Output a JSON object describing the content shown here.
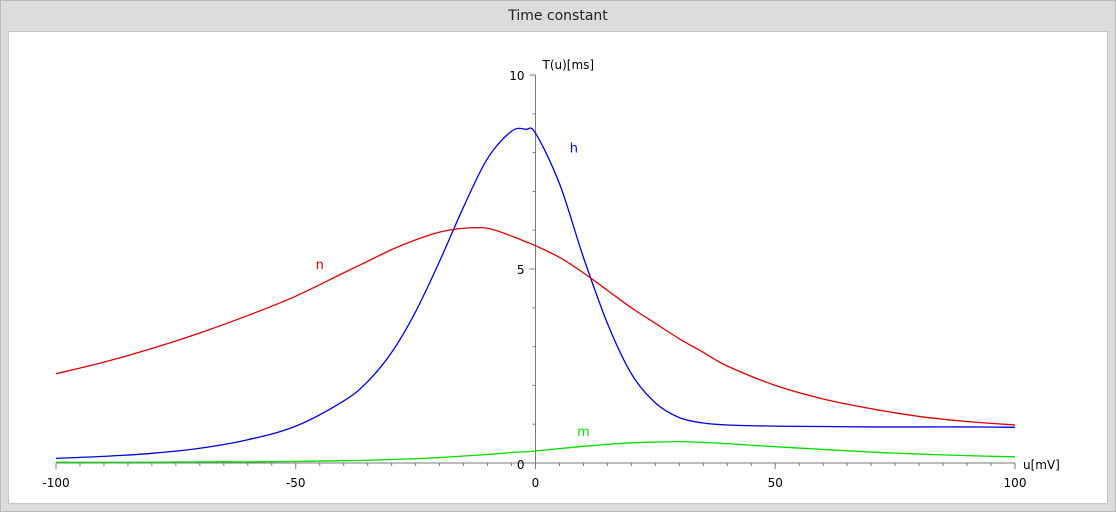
{
  "window": {
    "title": "Time constant"
  },
  "chart_data": {
    "type": "line",
    "title": "Time constant",
    "xlabel": "u[mV]",
    "ylabel": "T(u)[ms]",
    "xlim": [
      -100,
      100
    ],
    "ylim": [
      0,
      10
    ],
    "x_ticks": [
      -100,
      -50,
      0,
      50,
      100
    ],
    "x_tick_labels": [
      "-100",
      "-50",
      "0",
      "50",
      "100"
    ],
    "y_ticks": [
      0,
      5,
      10
    ],
    "y_tick_labels": [
      "0",
      "5",
      "10"
    ],
    "grid": false,
    "x": [
      -100,
      -90,
      -80,
      -70,
      -60,
      -50,
      -40,
      -35,
      -30,
      -25,
      -20,
      -15,
      -10,
      -5,
      -2,
      0,
      5,
      10,
      15,
      20,
      25,
      30,
      35,
      40,
      50,
      60,
      70,
      80,
      90,
      100
    ],
    "series": [
      {
        "name": "h",
        "color": "#0000dd",
        "label_at": [
          8,
          8.0
        ],
        "values": [
          0.12,
          0.17,
          0.25,
          0.38,
          0.6,
          0.95,
          1.6,
          2.1,
          2.85,
          3.9,
          5.2,
          6.6,
          7.85,
          8.55,
          8.6,
          8.5,
          7.2,
          5.3,
          3.6,
          2.3,
          1.55,
          1.17,
          1.03,
          0.98,
          0.95,
          0.94,
          0.93,
          0.93,
          0.93,
          0.92
        ]
      },
      {
        "name": "n",
        "color": "#dd0000",
        "label_at": [
          -45,
          5.0
        ],
        "values": [
          2.3,
          2.6,
          2.95,
          3.35,
          3.8,
          4.3,
          4.9,
          5.2,
          5.5,
          5.75,
          5.95,
          6.05,
          6.05,
          5.85,
          5.7,
          5.6,
          5.3,
          4.9,
          4.45,
          4.0,
          3.6,
          3.2,
          2.85,
          2.5,
          2.0,
          1.65,
          1.4,
          1.2,
          1.07,
          0.98
        ]
      },
      {
        "name": "m",
        "color": "#00dd00",
        "label_at": [
          10,
          0.7
        ],
        "values": [
          0.02,
          0.02,
          0.02,
          0.03,
          0.03,
          0.04,
          0.06,
          0.07,
          0.09,
          0.11,
          0.14,
          0.18,
          0.22,
          0.27,
          0.29,
          0.31,
          0.37,
          0.43,
          0.48,
          0.52,
          0.54,
          0.55,
          0.53,
          0.5,
          0.42,
          0.35,
          0.28,
          0.23,
          0.19,
          0.16
        ]
      }
    ]
  }
}
